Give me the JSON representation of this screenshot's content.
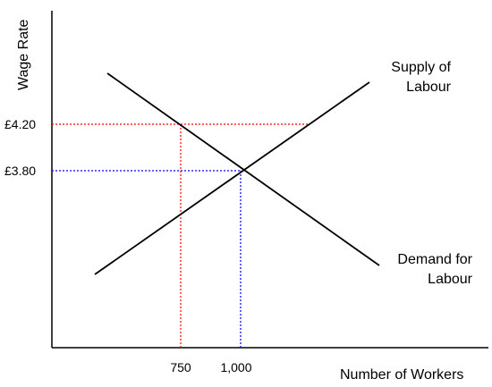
{
  "axes": {
    "y_title": "Wage Rate",
    "x_title": "Number of Workers"
  },
  "curves": {
    "supply": {
      "line1": "Supply of",
      "line2": "Labour",
      "color": "#000000"
    },
    "demand": {
      "line1": "Demand for",
      "line2": "Labour",
      "color": "#000000"
    }
  },
  "y_ticks": {
    "high": "£4.20",
    "low": "£3.80"
  },
  "x_ticks": {
    "left": "750",
    "right": "1,000"
  },
  "guide_colors": {
    "high_wage": "#ff0000",
    "equilibrium": "#0000ff"
  }
}
